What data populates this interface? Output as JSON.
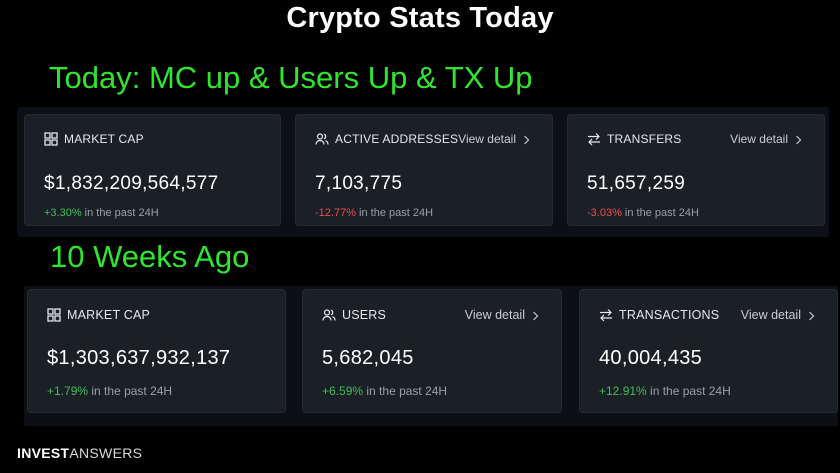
{
  "title": "Crypto Stats Today",
  "today": {
    "headline": "Today: MC up & Users Up & TX Up",
    "cards": [
      {
        "label": "MARKET CAP",
        "icon": "grid-icon",
        "value": "$1,832,209,564,577",
        "change": "+3.30%",
        "direction": "up",
        "suffix": " in the past 24H",
        "link": ""
      },
      {
        "label": "ACTIVE ADDRESSES",
        "icon": "users-icon",
        "value": "7,103,775",
        "change": "-12.77%",
        "direction": "down",
        "suffix": " in the past 24H",
        "link": "View detail"
      },
      {
        "label": "TRANSFERS",
        "icon": "transfer-arrows-icon",
        "value": "51,657,259",
        "change": "-3.03%",
        "direction": "down",
        "suffix": " in the past 24H",
        "link": "View detail"
      }
    ]
  },
  "ago": {
    "headline": "10 Weeks Ago",
    "cards": [
      {
        "label": "MARKET CAP",
        "icon": "grid-icon",
        "value": "$1,303,637,932,137",
        "change": "+1.79%",
        "direction": "up",
        "suffix": " in the past 24H",
        "link": ""
      },
      {
        "label": "USERS",
        "icon": "users-icon",
        "value": "5,682,045",
        "change": "+6.59%",
        "direction": "up",
        "suffix": " in the past 24H",
        "link": "View detail"
      },
      {
        "label": "TRANSACTIONS",
        "icon": "transfer-arrows-icon",
        "value": "40,004,435",
        "change": "+12.91%",
        "direction": "up",
        "suffix": " in the past 24H",
        "link": "View detail"
      }
    ]
  },
  "brand": {
    "bold": "INVEST",
    "light": "ANSWERS"
  },
  "colors": {
    "positive": "#3fbf5a",
    "negative": "#ef4e4e",
    "headline": "#2fe62f"
  }
}
